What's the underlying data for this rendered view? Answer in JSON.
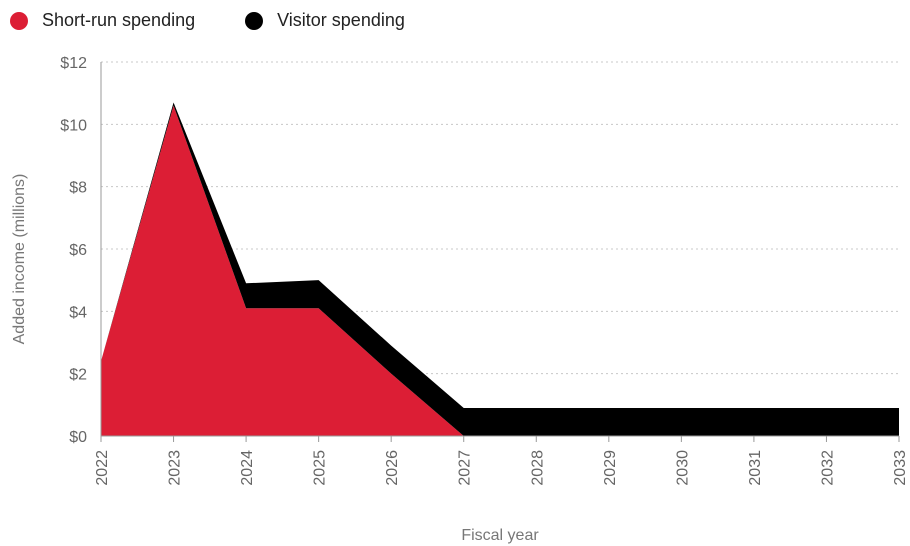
{
  "legend": {
    "items": [
      {
        "label": "Short-run spending",
        "color": "#dc1e35"
      },
      {
        "label": "Visitor spending",
        "color": "#000000"
      }
    ]
  },
  "chart_data": {
    "type": "area",
    "stacked": true,
    "x": [
      "2022",
      "2023",
      "2024",
      "2025",
      "2026",
      "2027",
      "2028",
      "2029",
      "2030",
      "2031",
      "2032",
      "2033"
    ],
    "series": [
      {
        "name": "Short-run spending",
        "color": "#dc1e35",
        "values": [
          2.4,
          10.6,
          4.1,
          4.1,
          2.0,
          0,
          0,
          0,
          0,
          0,
          0,
          0
        ]
      },
      {
        "name": "Visitor spending",
        "color": "#000000",
        "values": [
          0,
          0.1,
          0.8,
          0.9,
          0.9,
          0.9,
          0.9,
          0.9,
          0.9,
          0.9,
          0.9,
          0.9
        ]
      }
    ],
    "ylim": [
      0,
      12
    ],
    "yticks": [
      0,
      2,
      4,
      6,
      8,
      10,
      12
    ],
    "ytick_labels": [
      "$0",
      "$2",
      "$4",
      "$6",
      "$8",
      "$10",
      "$12"
    ],
    "xlabel": "Fiscal year",
    "ylabel": "Added income (millions)",
    "grid": true,
    "legend_position": "top-left"
  }
}
